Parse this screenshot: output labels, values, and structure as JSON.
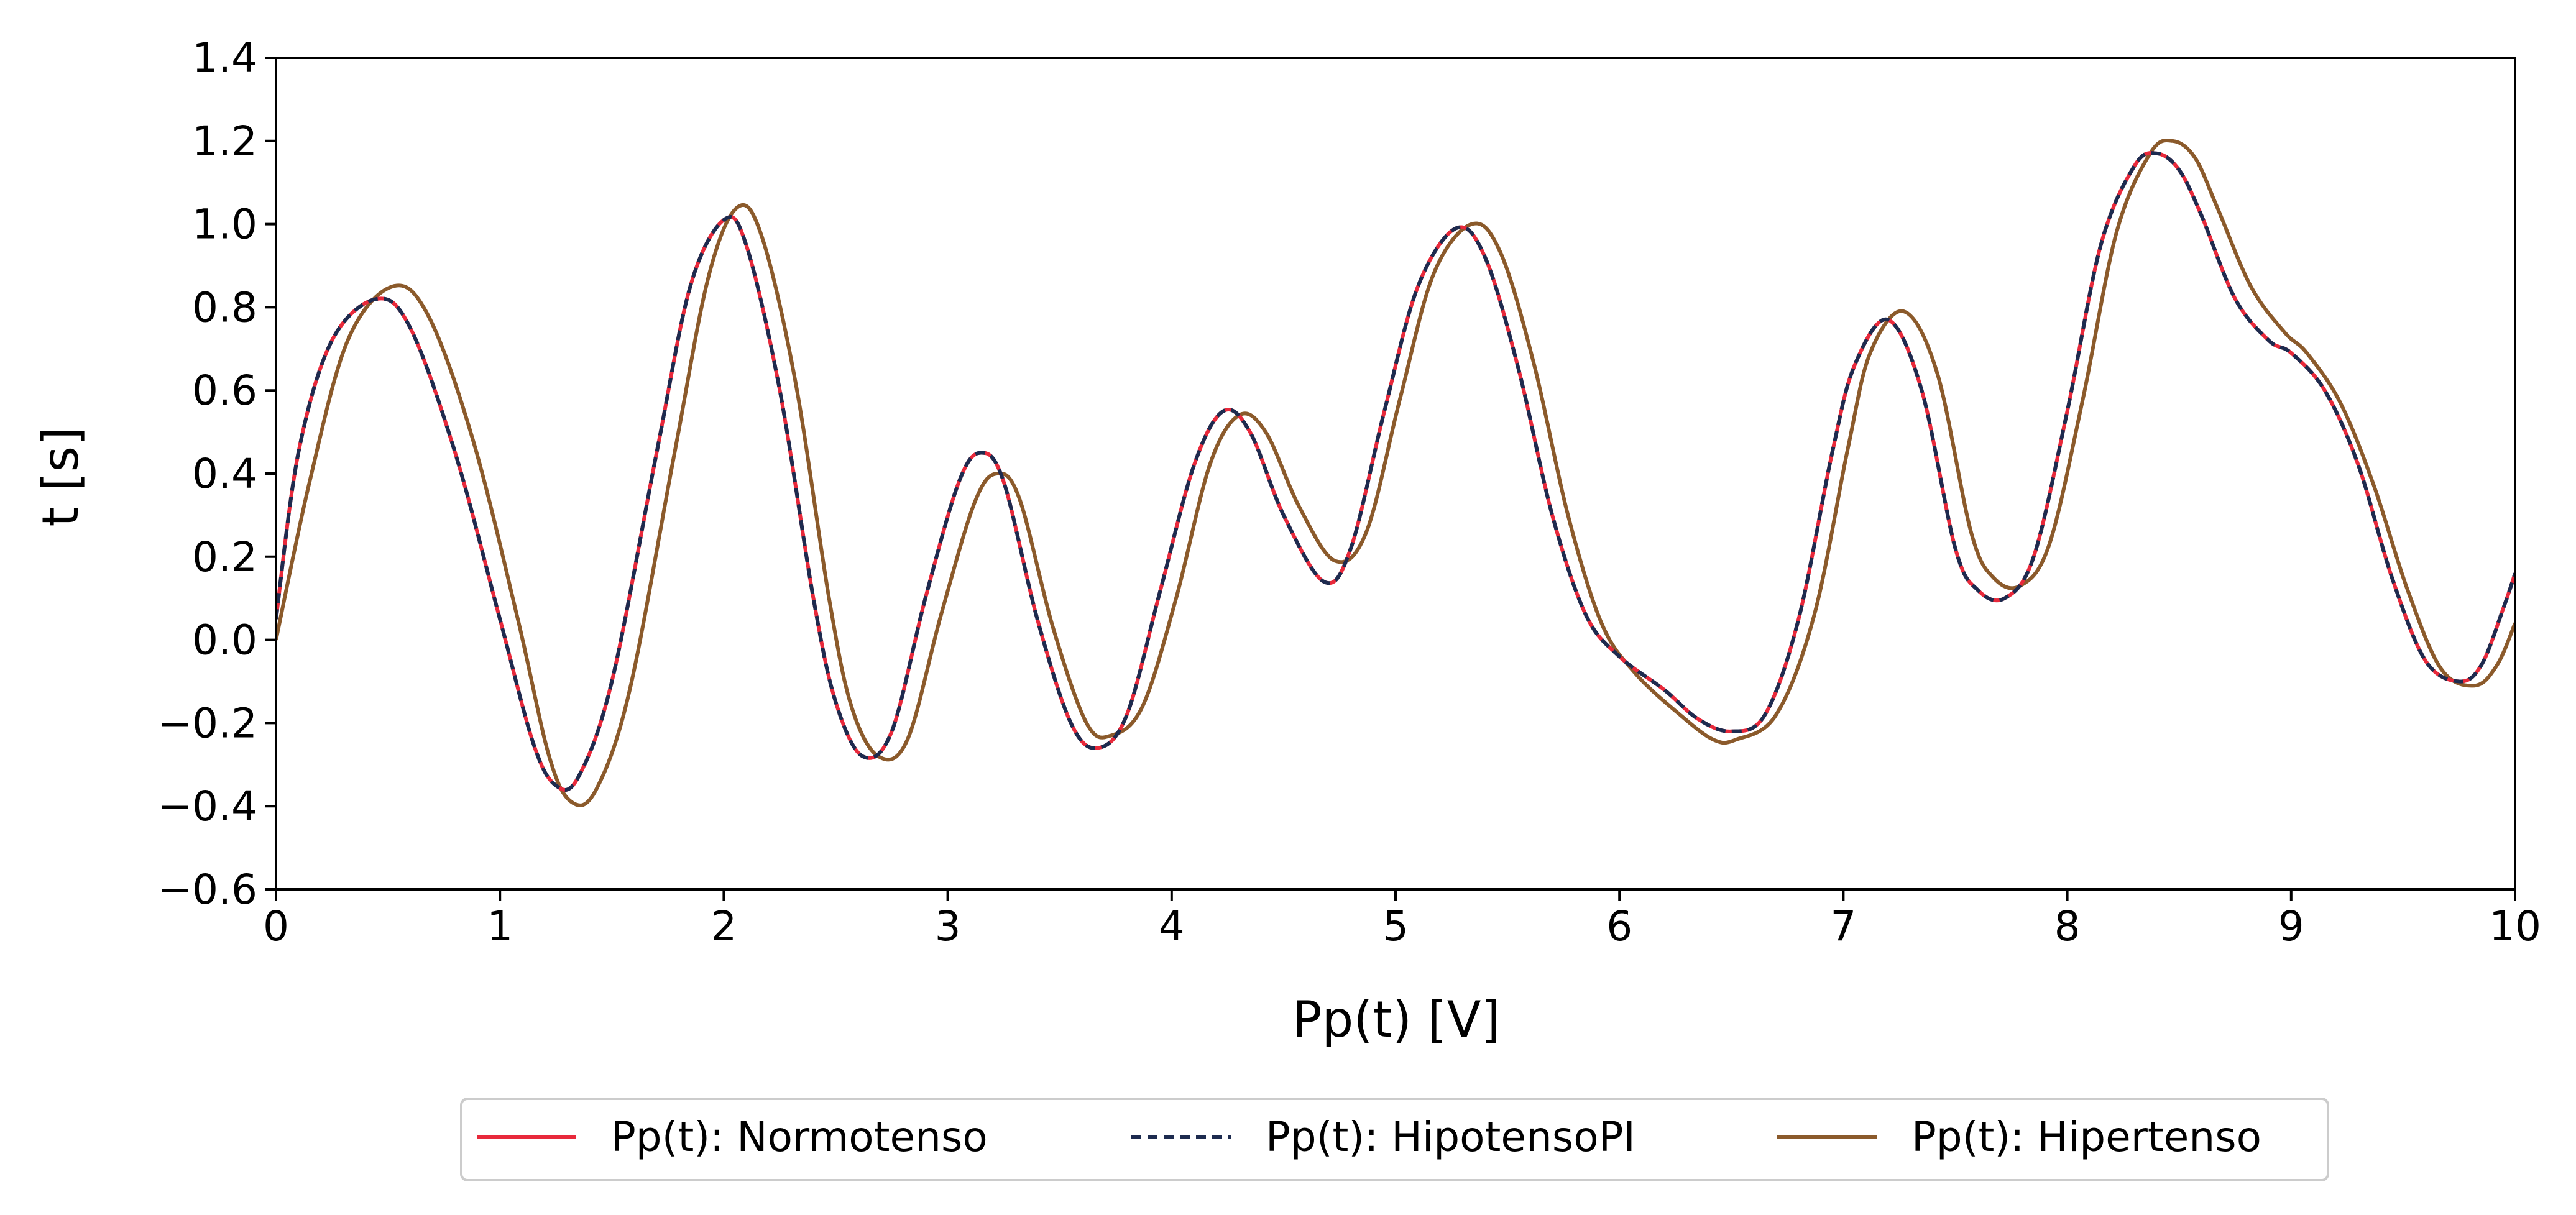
{
  "chart_data": {
    "type": "line",
    "title": "",
    "xlabel": "Pp(t) [V]",
    "ylabel": "t [s]",
    "xlim": [
      0,
      10
    ],
    "ylim": [
      -0.6,
      1.4
    ],
    "xticks": [
      0,
      1,
      2,
      3,
      4,
      5,
      6,
      7,
      8,
      9,
      10
    ],
    "xtick_labels": [
      "0",
      "1",
      "2",
      "3",
      "4",
      "5",
      "6",
      "7",
      "8",
      "9",
      "10"
    ],
    "yticks": [
      -0.6,
      -0.4,
      -0.2,
      0.0,
      0.2,
      0.4,
      0.6,
      0.8,
      1.0,
      1.2,
      1.4
    ],
    "ytick_labels": [
      "−0.6",
      "−0.4",
      "−0.2",
      "0.0",
      "0.2",
      "0.4",
      "0.6",
      "0.8",
      "1.0",
      "1.2",
      "1.4"
    ],
    "grid": false,
    "legend_position": "bottom-center",
    "series": [
      {
        "name": "Pp(t): Normotenso",
        "color": "#e8293b",
        "style": "solid",
        "x": [
          0,
          0.1,
          0.25,
          0.45,
          0.6,
          0.8,
          1.0,
          1.15,
          1.25,
          1.35,
          1.5,
          1.7,
          1.85,
          2.0,
          2.1,
          2.25,
          2.4,
          2.5,
          2.62,
          2.75,
          2.9,
          3.05,
          3.15,
          3.25,
          3.4,
          3.55,
          3.67,
          3.8,
          3.95,
          4.1,
          4.23,
          4.35,
          4.5,
          4.68,
          4.8,
          4.95,
          5.1,
          5.27,
          5.4,
          5.55,
          5.7,
          5.85,
          6.0,
          6.2,
          6.35,
          6.5,
          6.65,
          6.8,
          6.95,
          7.05,
          7.2,
          7.35,
          7.5,
          7.6,
          7.72,
          7.85,
          8.0,
          8.15,
          8.3,
          8.4,
          8.5,
          8.6,
          8.75,
          8.9,
          9.0,
          9.15,
          9.3,
          9.45,
          9.6,
          9.75,
          9.85,
          9.95,
          10.0
        ],
        "y": [
          0.05,
          0.45,
          0.72,
          0.82,
          0.75,
          0.45,
          0.05,
          -0.25,
          -0.35,
          -0.33,
          -0.1,
          0.45,
          0.85,
          1.01,
          0.95,
          0.6,
          0.1,
          -0.15,
          -0.28,
          -0.22,
          0.1,
          0.38,
          0.45,
          0.38,
          0.05,
          -0.2,
          -0.26,
          -0.18,
          0.12,
          0.42,
          0.55,
          0.5,
          0.3,
          0.14,
          0.22,
          0.55,
          0.85,
          0.99,
          0.92,
          0.65,
          0.3,
          0.06,
          -0.04,
          -0.12,
          -0.19,
          -0.22,
          -0.18,
          0.05,
          0.45,
          0.66,
          0.77,
          0.6,
          0.22,
          0.12,
          0.1,
          0.2,
          0.55,
          0.95,
          1.14,
          1.17,
          1.13,
          1.02,
          0.82,
          0.72,
          0.69,
          0.6,
          0.42,
          0.15,
          -0.05,
          -0.1,
          -0.06,
          0.08,
          0.16
        ]
      },
      {
        "name": "Pp(t): HipotensoPI",
        "color": "#1d2b4f",
        "style": "dashed",
        "x": [
          0,
          0.1,
          0.25,
          0.45,
          0.6,
          0.8,
          1.0,
          1.15,
          1.25,
          1.35,
          1.5,
          1.7,
          1.85,
          2.0,
          2.1,
          2.25,
          2.4,
          2.5,
          2.62,
          2.75,
          2.9,
          3.05,
          3.15,
          3.25,
          3.4,
          3.55,
          3.67,
          3.8,
          3.95,
          4.1,
          4.23,
          4.35,
          4.5,
          4.68,
          4.8,
          4.95,
          5.1,
          5.27,
          5.4,
          5.55,
          5.7,
          5.85,
          6.0,
          6.2,
          6.35,
          6.5,
          6.65,
          6.8,
          6.95,
          7.05,
          7.2,
          7.35,
          7.5,
          7.6,
          7.72,
          7.85,
          8.0,
          8.15,
          8.3,
          8.4,
          8.5,
          8.6,
          8.75,
          8.9,
          9.0,
          9.15,
          9.3,
          9.45,
          9.6,
          9.75,
          9.85,
          9.95,
          10.0
        ],
        "y": [
          0.05,
          0.45,
          0.72,
          0.82,
          0.75,
          0.45,
          0.05,
          -0.25,
          -0.35,
          -0.33,
          -0.1,
          0.45,
          0.85,
          1.01,
          0.95,
          0.6,
          0.1,
          -0.15,
          -0.28,
          -0.22,
          0.1,
          0.38,
          0.45,
          0.38,
          0.05,
          -0.2,
          -0.26,
          -0.18,
          0.12,
          0.42,
          0.55,
          0.5,
          0.3,
          0.14,
          0.22,
          0.55,
          0.85,
          0.99,
          0.92,
          0.65,
          0.3,
          0.06,
          -0.04,
          -0.12,
          -0.19,
          -0.22,
          -0.18,
          0.05,
          0.45,
          0.66,
          0.77,
          0.6,
          0.22,
          0.12,
          0.1,
          0.2,
          0.55,
          0.95,
          1.14,
          1.17,
          1.13,
          1.02,
          0.82,
          0.72,
          0.69,
          0.6,
          0.42,
          0.15,
          -0.05,
          -0.1,
          -0.06,
          0.08,
          0.16
        ]
      },
      {
        "name": "Pp(t): Hipertenso",
        "color": "#8b5a2b",
        "style": "solid",
        "x": [
          0,
          0.15,
          0.32,
          0.52,
          0.68,
          0.88,
          1.08,
          1.22,
          1.32,
          1.43,
          1.58,
          1.78,
          1.93,
          2.06,
          2.17,
          2.32,
          2.47,
          2.57,
          2.69,
          2.82,
          2.97,
          3.12,
          3.22,
          3.32,
          3.47,
          3.62,
          3.73,
          3.87,
          4.02,
          4.17,
          4.3,
          4.42,
          4.57,
          4.73,
          4.87,
          5.02,
          5.17,
          5.34,
          5.47,
          5.62,
          5.77,
          5.92,
          6.07,
          6.27,
          6.42,
          6.52,
          6.7,
          6.87,
          7.02,
          7.12,
          7.27,
          7.42,
          7.57,
          7.67,
          7.79,
          7.92,
          8.07,
          8.22,
          8.37,
          8.47,
          8.57,
          8.67,
          8.82,
          8.97,
          9.07,
          9.22,
          9.37,
          9.52,
          9.67,
          9.82,
          9.92,
          10.0
        ],
        "y": [
          0.0,
          0.38,
          0.72,
          0.85,
          0.78,
          0.48,
          0.05,
          -0.28,
          -0.39,
          -0.36,
          -0.12,
          0.45,
          0.87,
          1.04,
          0.97,
          0.62,
          0.1,
          -0.16,
          -0.28,
          -0.24,
          0.06,
          0.33,
          0.4,
          0.34,
          0.03,
          -0.2,
          -0.23,
          -0.16,
          0.1,
          0.42,
          0.54,
          0.5,
          0.32,
          0.19,
          0.26,
          0.58,
          0.88,
          1.0,
          0.93,
          0.66,
          0.3,
          0.04,
          -0.08,
          -0.18,
          -0.24,
          -0.24,
          -0.18,
          0.06,
          0.46,
          0.69,
          0.79,
          0.64,
          0.26,
          0.15,
          0.13,
          0.23,
          0.58,
          0.98,
          1.17,
          1.2,
          1.16,
          1.04,
          0.85,
          0.74,
          0.69,
          0.57,
          0.37,
          0.12,
          -0.07,
          -0.11,
          -0.06,
          0.04
        ]
      }
    ]
  }
}
